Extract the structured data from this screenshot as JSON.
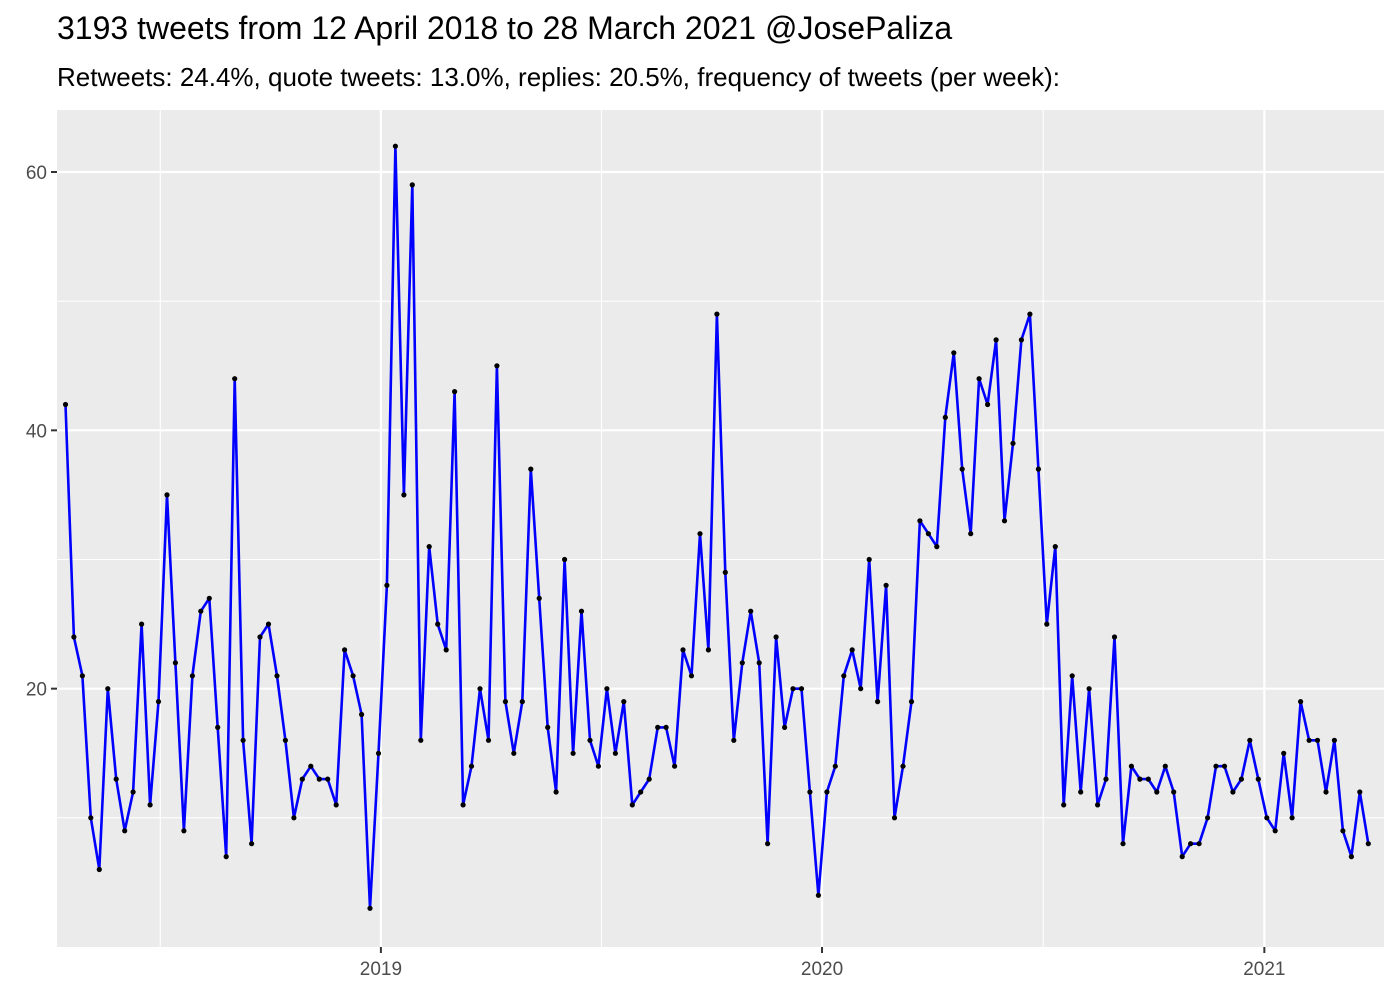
{
  "chart_data": {
    "type": "line",
    "title": "3193 tweets from 12 April 2018 to 28 March 2021 @JosePaliza",
    "subtitle": "Retweets: 24.4%, quote tweets: 13.0%, replies: 20.5%, frequency of tweets (per week):",
    "xlabel": "",
    "ylabel": "",
    "x_axis": "date",
    "xlim": [
      "2018-04-08",
      "2021-04-10"
    ],
    "ylim": [
      0,
      64.8
    ],
    "x_ticks": [
      {
        "label": "2019",
        "date": "2019-01-01"
      },
      {
        "label": "2020",
        "date": "2020-01-01"
      },
      {
        "label": "2021",
        "date": "2021-01-01"
      }
    ],
    "y_ticks": [
      20,
      40,
      60
    ],
    "grid": true,
    "colors": {
      "line": "#0000ff",
      "point": "#000000",
      "panel": "#ebebeb",
      "grid": "#ffffff"
    },
    "series": [
      {
        "start_date": "2018-04-15",
        "interval_days": 7,
        "values": [
          42,
          24,
          21,
          10,
          6,
          20,
          13,
          9,
          12,
          25,
          11,
          19,
          35,
          22,
          9,
          21,
          26,
          27,
          17,
          7,
          44,
          16,
          8,
          24,
          25,
          21,
          16,
          10,
          13,
          14,
          13,
          13,
          11,
          23,
          21,
          18,
          3,
          15,
          28,
          62,
          35,
          59,
          16,
          31,
          25,
          23,
          43,
          11,
          14,
          20,
          16,
          45,
          19,
          15,
          19,
          37,
          27,
          17,
          12,
          30,
          15,
          26,
          16,
          14,
          20,
          15,
          19,
          11,
          12,
          13,
          17,
          17,
          14,
          23,
          21,
          32,
          23,
          49,
          29,
          16,
          22,
          26,
          22,
          8,
          24,
          17,
          20,
          20,
          12,
          4,
          12,
          14,
          21,
          23,
          20,
          30,
          19,
          28,
          10,
          14,
          19,
          33,
          32,
          31,
          41,
          46,
          37,
          32,
          44,
          42,
          47,
          33,
          39,
          47,
          49,
          37,
          25,
          31,
          11,
          21,
          12,
          20,
          11,
          13,
          24,
          8,
          14,
          13,
          13,
          12,
          14,
          12,
          7,
          8,
          8,
          10,
          14,
          14,
          12,
          13,
          16,
          13,
          10,
          9,
          15,
          10,
          19,
          16,
          16,
          12,
          16,
          9,
          7,
          12,
          8
        ]
      }
    ]
  }
}
